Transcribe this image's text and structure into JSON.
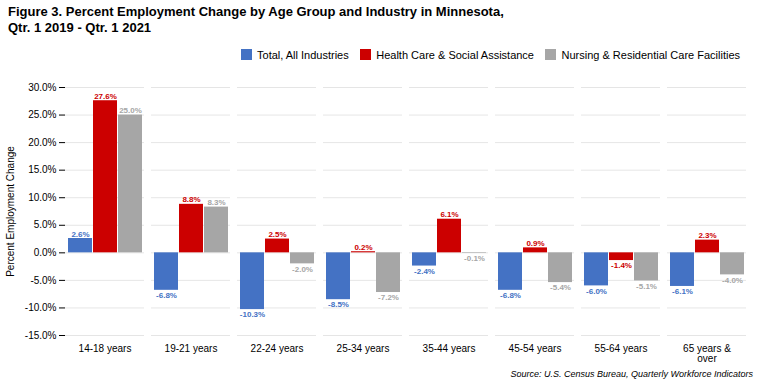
{
  "chart_data": {
    "type": "bar",
    "title": "Figure 3. Percent Employment Change by Age Group and Industry in Minnesota,",
    "subtitle": "Qtr. 1 2019 - Qtr. 1 2021",
    "ylabel": "Percent Employment Change",
    "source": "Source: U.S. Census Bureau, Quarterly Workforce Indicators",
    "categories": [
      "14-18 years",
      "19-21 years",
      "22-24 years",
      "25-34 years",
      "35-44 years",
      "45-54 years",
      "55-64 years",
      "65 years &\nover"
    ],
    "series": [
      {
        "name": "Total, All Industries",
        "color": "#4472C4",
        "values": [
          2.6,
          -6.8,
          -10.3,
          -8.5,
          -2.4,
          -6.8,
          -6.0,
          -6.1
        ],
        "value_labels": [
          "2.6%",
          "-6.8%",
          "-10.3%",
          "-8.5%",
          "-2.4%",
          "-6.8%",
          "-6.0%",
          "-6.1%"
        ]
      },
      {
        "name": "Health Care & Social Assistance",
        "color": "#CC0000",
        "values": [
          27.6,
          8.8,
          2.5,
          0.2,
          6.1,
          0.9,
          -1.4,
          2.3
        ],
        "value_labels": [
          "27.6%",
          "8.8%",
          "2.5%",
          "0.2%",
          "6.1%",
          "0.9%",
          "-1.4%",
          "2.3%"
        ]
      },
      {
        "name": "Nursing & Residential Care Facilities",
        "color": "#A6A6A6",
        "values": [
          25.0,
          8.3,
          -2.0,
          -7.2,
          -0.1,
          -5.4,
          -5.1,
          -4.0
        ],
        "value_labels": [
          "25.0%",
          "8.3%",
          "-2.0%",
          "-7.2%",
          "-0.1%",
          "-5.4%",
          "-5.1%",
          "-4.0%"
        ]
      }
    ],
    "ylim": [
      -15.0,
      30.0
    ],
    "yticks": [
      {
        "value": -15.0,
        "label": "-15.0%"
      },
      {
        "value": -10.0,
        "label": "-10.0%"
      },
      {
        "value": -5.0,
        "label": "-5.0%"
      },
      {
        "value": 0.0,
        "label": "0.0%"
      },
      {
        "value": 5.0,
        "label": "5.0%"
      },
      {
        "value": 10.0,
        "label": "10.0%"
      },
      {
        "value": 15.0,
        "label": "15.0%"
      },
      {
        "value": 20.0,
        "label": "20.0%"
      },
      {
        "value": 25.0,
        "label": "25.0%"
      },
      {
        "value": 30.0,
        "label": "30.0%"
      }
    ],
    "grid": true,
    "legend": "upper right",
    "data_labels": true
  }
}
